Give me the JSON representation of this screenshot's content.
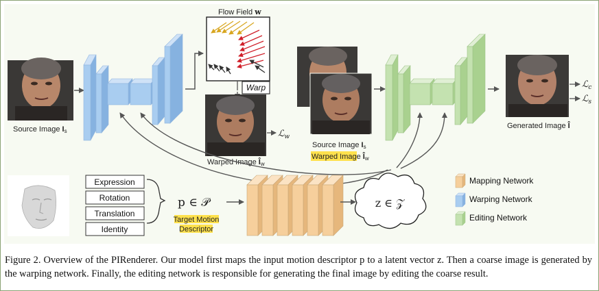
{
  "figure": {
    "flow_field_title": "Flow Field ",
    "flow_field_symbol": "w",
    "warp_label": "Warp",
    "loss_w": "ℒ",
    "loss_w_sub": "w",
    "loss_c": "ℒ",
    "loss_c_sub": "c",
    "loss_s": "ℒ",
    "loss_s_sub": "s",
    "source_image_label": "Source Image ",
    "source_image_symbol": "I",
    "source_image_sub": "s",
    "warped_image_label": "Warped Image ",
    "warped_image_symbol": "Î",
    "warped_image_sub": "w",
    "stack_source_label": "Source Image ",
    "stack_source_symbol": "I",
    "stack_source_sub": "s",
    "stack_warped_label": "Warped Image",
    "stack_warped_symbol": " Î",
    "stack_warped_sub": "w",
    "generated_label": "Generated Image ",
    "generated_symbol": "Î",
    "descriptors": [
      "Expression",
      "Rotation",
      "Translation",
      "Identity"
    ],
    "motion_symbol": "p ∈ 𝒫",
    "motion_label_line1": "Target Motion",
    "motion_label_line2": "Descriptor",
    "latent_symbol": "z ∈ 𝒵",
    "legend": [
      {
        "label": "Mapping Network",
        "color": "#f6cf9c"
      },
      {
        "label": "Warping Network",
        "color": "#a9cdf0"
      },
      {
        "label": "Editing Network",
        "color": "#c4e2b0"
      }
    ],
    "colors": {
      "mapping": "#f6cf9c",
      "warping": "#a9cdf0",
      "editing": "#c4e2b0",
      "highlight": "#ffe14d",
      "flow_arrow_yellow": "#d8a620",
      "flow_arrow_red": "#d0202a",
      "flow_arrow_dark": "#333333",
      "frame": "#8aa274"
    }
  },
  "caption": {
    "text": "Figure 2. Overview of the PIRenderer. Our model first maps the input motion descriptor p to a latent vector z. Then a coarse image is generated by the warping network. Finally, the editing network is responsible for generating the final image by editing the coarse result."
  }
}
